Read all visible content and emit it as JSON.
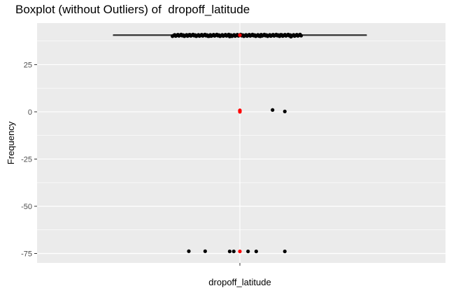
{
  "chart_data": {
    "type": "boxplot",
    "title": "Boxplot (without Outliers) of  dropoff_latitude",
    "xlabel": "dropoff_latitude",
    "ylabel": "Frequency",
    "ylim": [
      -80,
      47
    ],
    "y_ticks": [
      25,
      0,
      -25,
      -50,
      -75
    ],
    "y_tick_labels": [
      "25",
      "0",
      "-25",
      "-50",
      "-75"
    ],
    "x_tick_labels": [
      ""
    ],
    "grid": true,
    "box": {
      "q1": 40.73,
      "median": 40.75,
      "q3": 40.77,
      "whisker_low": 40.7,
      "whisker_high": 40.8
    },
    "jitter_points": [
      {
        "x": -0.15,
        "y": 40.1
      },
      {
        "x": -0.1,
        "y": 40.3
      },
      {
        "x": -0.05,
        "y": 39.9
      },
      {
        "x": -0.02,
        "y": 40.5
      },
      {
        "x": 0.02,
        "y": 40.2
      },
      {
        "x": 0.06,
        "y": 40.6
      },
      {
        "x": 0.1,
        "y": 40.0
      },
      {
        "x": 0.15,
        "y": 40.4
      },
      {
        "x": 0.2,
        "y": 40.8
      },
      {
        "x": 0.25,
        "y": 39.8
      },
      {
        "x": 0.05,
        "y": 40.3
      },
      {
        "x": -0.25,
        "y": 40.7
      },
      {
        "x": 0.16,
        "y": 1.0
      },
      {
        "x": 0.22,
        "y": 0.2
      },
      {
        "x": -0.25,
        "y": -73.8
      },
      {
        "x": -0.17,
        "y": -73.8
      },
      {
        "x": -0.05,
        "y": -73.9
      },
      {
        "x": -0.03,
        "y": -73.9
      },
      {
        "x": 0.04,
        "y": -73.9
      },
      {
        "x": 0.08,
        "y": -73.9
      },
      {
        "x": 0.22,
        "y": -73.9
      }
    ],
    "outliers_red": [
      {
        "y": 40.6
      },
      {
        "y": 0.0
      },
      {
        "y": 0.4
      },
      {
        "y": 0.8
      },
      {
        "y": -73.9
      }
    ],
    "colors": {
      "panel": "#ebebeb",
      "grid_major": "#ffffff",
      "points": "#000000",
      "outliers": "#ff0000"
    }
  }
}
